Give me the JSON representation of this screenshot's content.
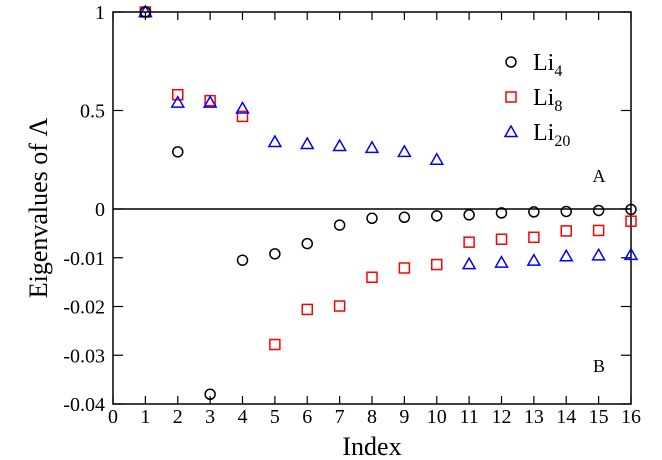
{
  "chart_data": {
    "type": "scatter",
    "xlabel": "Index",
    "ylabel": "Eigenvalues of Λ",
    "xlim": [
      0,
      16
    ],
    "x_ticks": [
      "0",
      "1",
      "2",
      "3",
      "4",
      "5",
      "6",
      "7",
      "8",
      "9",
      "10",
      "11",
      "12",
      "13",
      "14",
      "15",
      "16"
    ],
    "top_panel": {
      "label": "A",
      "ylim": [
        0,
        1
      ],
      "y_ticks": [
        "0",
        "0.5",
        "1"
      ],
      "series": [
        {
          "name": "Li4",
          "marker": "circle",
          "color": "#000000",
          "x": [
            1,
            2
          ],
          "y": [
            1.0,
            0.29
          ]
        },
        {
          "name": "Li8",
          "marker": "square",
          "color": "#ff0000",
          "x": [
            1,
            2,
            3,
            4
          ],
          "y": [
            1.0,
            0.58,
            0.55,
            0.47
          ]
        },
        {
          "name": "Li20",
          "marker": "triangle",
          "color": "#0000ff",
          "x": [
            1,
            2,
            3,
            4,
            5,
            6,
            7,
            8,
            9,
            10
          ],
          "y": [
            1.0,
            0.54,
            0.54,
            0.51,
            0.34,
            0.33,
            0.32,
            0.31,
            0.29,
            0.25
          ]
        }
      ]
    },
    "bottom_panel": {
      "label": "B",
      "ylim": [
        -0.04,
        0
      ],
      "y_ticks": [
        "-0.04",
        "-0.03",
        "-0.02",
        "-0.01"
      ],
      "series": [
        {
          "name": "Li4",
          "marker": "circle",
          "color": "#000000",
          "x": [
            3,
            4,
            5,
            6,
            7,
            8,
            9,
            10,
            11,
            12,
            13,
            14,
            15,
            16
          ],
          "y": [
            -0.038,
            -0.0105,
            -0.0092,
            -0.0071,
            -0.0033,
            -0.0019,
            -0.0017,
            -0.0014,
            -0.0012,
            -0.0008,
            -0.0006,
            -0.0005,
            -0.0003,
            -0.0001
          ]
        },
        {
          "name": "Li8",
          "marker": "square",
          "color": "#ff0000",
          "x": [
            5,
            6,
            7,
            8,
            9,
            10,
            11,
            12,
            13,
            14,
            15,
            16
          ],
          "y": [
            -0.0278,
            -0.0206,
            -0.0199,
            -0.014,
            -0.0121,
            -0.0114,
            -0.0068,
            -0.0062,
            -0.0058,
            -0.0045,
            -0.0044,
            -0.0025
          ]
        },
        {
          "name": "Li20",
          "marker": "triangle",
          "color": "#0000ff",
          "x": [
            11,
            12,
            13,
            14,
            15,
            16
          ],
          "y": [
            -0.0113,
            -0.011,
            -0.0106,
            -0.0097,
            -0.0095,
            -0.0094
          ]
        }
      ]
    },
    "legend": {
      "placement": "top-right",
      "entries": [
        {
          "base": "Li",
          "sub": "4",
          "marker": "circle",
          "color": "#000000"
        },
        {
          "base": "Li",
          "sub": "8",
          "marker": "square",
          "color": "#ff0000"
        },
        {
          "base": "Li",
          "sub": "20",
          "marker": "triangle",
          "color": "#0000ff"
        }
      ]
    }
  }
}
